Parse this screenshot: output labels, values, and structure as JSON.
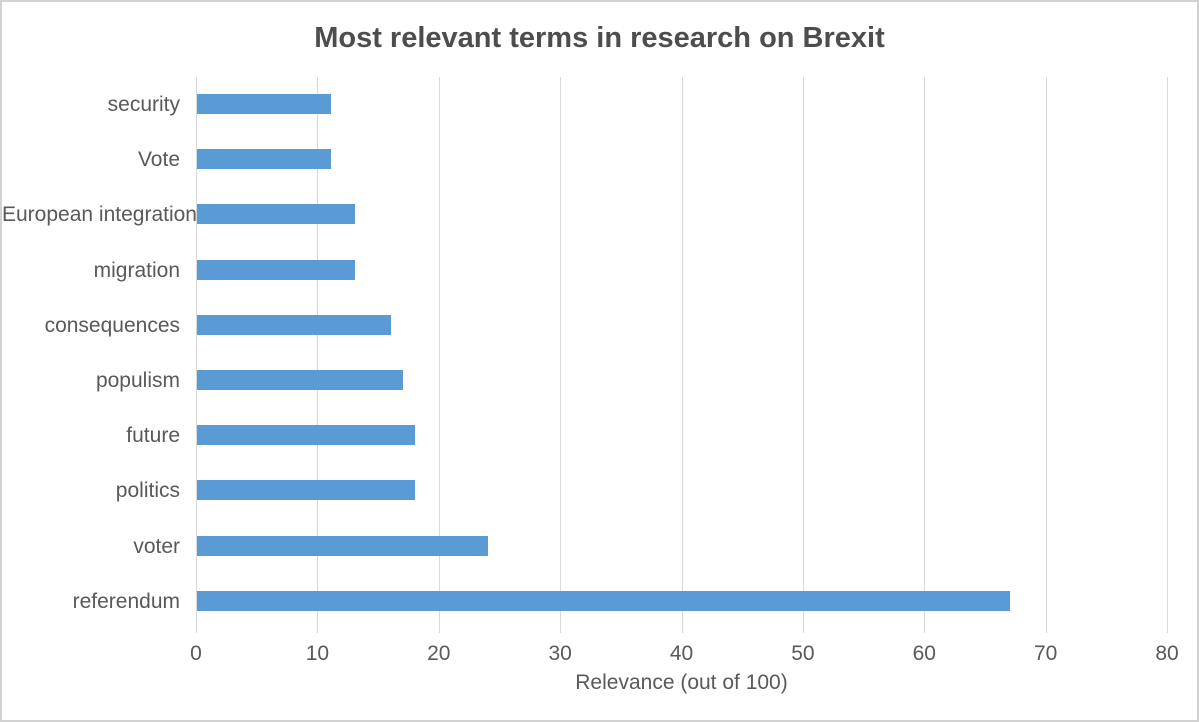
{
  "chart_data": {
    "type": "bar",
    "orientation": "horizontal",
    "title": "Most relevant terms in research on Brexit",
    "xlabel": "Relevance (out of 100)",
    "ylabel": "",
    "categories": [
      "security",
      "Vote",
      "European integration",
      "migration",
      "consequences",
      "populism",
      "future",
      "politics",
      "voter",
      "referendum"
    ],
    "values": [
      11,
      11,
      13,
      13,
      16,
      17,
      18,
      18,
      24,
      67
    ],
    "xlim": [
      0,
      80
    ],
    "xticks": [
      0,
      10,
      20,
      30,
      40,
      50,
      60,
      70,
      80
    ],
    "grid": true,
    "legend": false,
    "colors": {
      "bar": "#5b9bd5",
      "gridline": "#d9d9d9",
      "axis_text": "#595959",
      "title_text": "#4d4d4d",
      "frame_border": "#d2d2d2",
      "background": "#ffffff"
    }
  }
}
